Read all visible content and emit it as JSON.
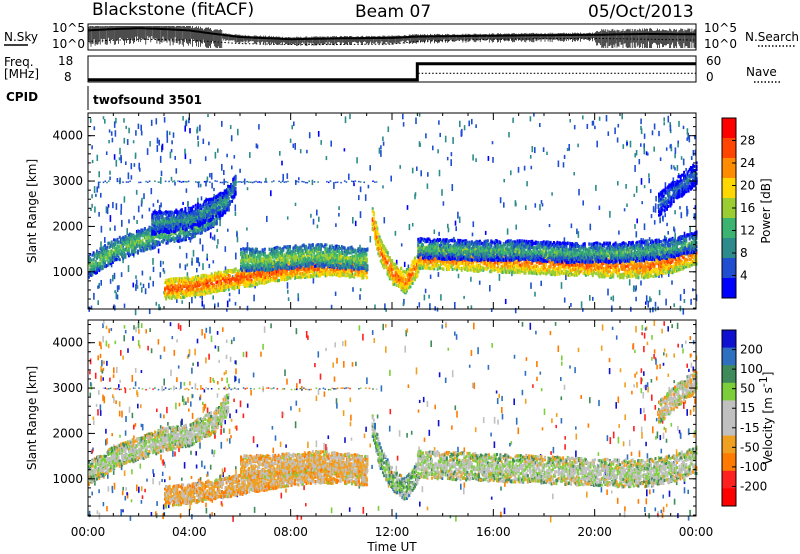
{
  "header": {
    "station": "Blackstone (fitACF)",
    "beam": "Beam 07",
    "date": "05/Oct/2013"
  },
  "noise_panel": {
    "left_label": "N.Sky",
    "right_label": "N.Search",
    "left_ticks": [
      "10^5",
      "10^0"
    ],
    "right_ticks": [
      "10^5",
      "10^0"
    ]
  },
  "freq_panel": {
    "left_label_line1": "Freq.",
    "left_label_line2": "[MHz]",
    "right_label": "Nave",
    "left_ticks": [
      "18",
      "8"
    ],
    "right_ticks": [
      "60",
      "0"
    ]
  },
  "cpid_panel": {
    "label": "CPID",
    "program": "twofsound 3501"
  },
  "power_panel": {
    "ylabel": "Slant Range [km]",
    "y_ticks": [
      "4000",
      "3000",
      "2000",
      "1000"
    ],
    "colorbar_label": "Power [dB]",
    "colorbar_ticks": [
      "28",
      "24",
      "20",
      "16",
      "12",
      "8",
      "4"
    ]
  },
  "velocity_panel": {
    "ylabel": "Slant Range [km]",
    "y_ticks": [
      "4000",
      "3000",
      "2000",
      "1000"
    ],
    "colorbar_label_main": "Velocity [m s",
    "colorbar_label_sup": "-1",
    "colorbar_label_end": "]",
    "colorbar_ticks": [
      "200",
      "100",
      "50",
      "15",
      "-15",
      "-50",
      "-100",
      "-200"
    ]
  },
  "x_axis": {
    "ticks": [
      "00:00",
      "04:00",
      "08:00",
      "12:00",
      "16:00",
      "20:00",
      "00:00"
    ],
    "label": "Time UT"
  },
  "colors": {
    "power_scale": [
      "#0000ff",
      "#1f4fd0",
      "#2e8b8b",
      "#3cb371",
      "#9acd32",
      "#ffd700",
      "#ff8c00",
      "#ff4500",
      "#ff0000"
    ],
    "velocity_scale": [
      "#1010d0",
      "#2e6fbf",
      "#3f8a5a",
      "#7ccf3a",
      "#c0c0c0",
      "#c0c0c0",
      "#f0a020",
      "#ff7a00",
      "#ff2020",
      "#ff0000"
    ]
  },
  "chart_data": [
    {
      "type": "line",
      "name": "noise",
      "x_range_hours": [
        0,
        24
      ],
      "series": [
        {
          "name": "N.Sky",
          "x": [
            0,
            1,
            2,
            3,
            4,
            5,
            6,
            8,
            10,
            12,
            13,
            16,
            20,
            22,
            24
          ],
          "y_log10": [
            4.0,
            4.3,
            4.5,
            4.3,
            4.0,
            3.2,
            2.5,
            2.0,
            2.2,
            2.3,
            2.6,
            2.8,
            3.0,
            3.2,
            3.1
          ]
        },
        {
          "name": "N.Search",
          "x": [
            0,
            2,
            4,
            6,
            8,
            10,
            12,
            13,
            16,
            20,
            24
          ],
          "y_log10": [
            1.5,
            2.0,
            1.8,
            1.0,
            0.8,
            0.8,
            0.9,
            1.5,
            2.0,
            2.2,
            1.8
          ]
        }
      ]
    },
    {
      "type": "line",
      "name": "frequency",
      "x_range_hours": [
        0,
        24
      ],
      "series": [
        {
          "name": "Freq.",
          "x": [
            0,
            13.0,
            13.0,
            24
          ],
          "y": [
            8.5,
            8.5,
            15.5,
            15.5
          ]
        },
        {
          "name": "Nave",
          "x": [
            0,
            13.0,
            13.0,
            24
          ],
          "y": [
            5,
            5,
            20,
            20
          ]
        }
      ]
    },
    {
      "type": "heatmap",
      "name": "power",
      "x_range_hours": [
        0,
        24
      ],
      "y_range_km": [
        180,
        4500
      ],
      "value_range": [
        0,
        30
      ],
      "bands": [
        {
          "x": [
            0,
            1,
            2,
            3,
            4,
            5,
            5.5
          ],
          "y": [
            1150,
            1500,
            1700,
            1900,
            2000,
            2300,
            2700
          ],
          "width_km": 250,
          "value": 14
        },
        {
          "x": [
            2.5,
            4,
            5.5,
            5.8
          ],
          "y": [
            2100,
            2200,
            2600,
            3000
          ],
          "width_km": 250,
          "value": 10
        },
        {
          "x": [
            3.0,
            4,
            5,
            6,
            7,
            8,
            9,
            10,
            11.0
          ],
          "y": [
            650,
            700,
            800,
            900,
            1000,
            1100,
            1150,
            1150,
            1100
          ],
          "width_km": 220,
          "value": 25
        },
        {
          "x": [
            6.0,
            7,
            8,
            9,
            10,
            11.0
          ],
          "y": [
            1300,
            1300,
            1350,
            1400,
            1350,
            1300
          ],
          "width_km": 250,
          "value": 15
        },
        {
          "x": [
            11.2,
            11.5,
            12.0,
            12.5,
            13.0
          ],
          "y": [
            2200,
            1500,
            1000,
            800,
            1200
          ],
          "width_km": 250,
          "value": 24
        },
        {
          "x": [
            13.0,
            15,
            17,
            19,
            21,
            22,
            23,
            24
          ],
          "y": [
            1350,
            1300,
            1250,
            1200,
            1150,
            1150,
            1250,
            1450
          ],
          "width_km": 250,
          "value": 24
        },
        {
          "x": [
            13.0,
            15,
            17,
            19,
            21,
            23,
            24
          ],
          "y": [
            1550,
            1500,
            1500,
            1450,
            1450,
            1550,
            1700
          ],
          "width_km": 220,
          "value": 12
        },
        {
          "x": [
            22.5,
            23.3,
            24
          ],
          "y": [
            2500,
            2900,
            3200
          ],
          "width_km": 250,
          "value": 8
        }
      ]
    },
    {
      "type": "heatmap",
      "name": "velocity",
      "x_range_hours": [
        0,
        24
      ],
      "y_range_km": [
        180,
        4500
      ],
      "value_range": [
        -250,
        250
      ],
      "bands": [
        {
          "x": [
            0,
            1,
            2,
            3,
            4,
            5,
            5.5
          ],
          "y": [
            1150,
            1500,
            1700,
            1900,
            2000,
            2300,
            2700
          ],
          "width_km": 250,
          "value": 0
        },
        {
          "x": [
            3.0,
            4,
            5,
            6,
            7,
            8,
            9,
            10,
            11.0
          ],
          "y": [
            650,
            700,
            800,
            900,
            1000,
            1100,
            1150,
            1150,
            1100
          ],
          "width_km": 220,
          "value": -60
        },
        {
          "x": [
            6.0,
            7,
            8,
            9,
            10,
            11.0
          ],
          "y": [
            1300,
            1300,
            1350,
            1400,
            1350,
            1300
          ],
          "width_km": 250,
          "value": -50
        },
        {
          "x": [
            11.2,
            11.5,
            12.0,
            12.5,
            13.0
          ],
          "y": [
            2200,
            1500,
            1000,
            800,
            1200
          ],
          "width_km": 250,
          "value": 40
        },
        {
          "x": [
            13.0,
            15,
            17,
            19,
            21,
            22,
            23,
            24
          ],
          "y": [
            1350,
            1300,
            1250,
            1200,
            1150,
            1150,
            1250,
            1450
          ],
          "width_km": 300,
          "value": 0
        },
        {
          "x": [
            22.5,
            23.3,
            24
          ],
          "y": [
            2500,
            2900,
            3200
          ],
          "width_km": 250,
          "value": -20
        }
      ]
    }
  ]
}
